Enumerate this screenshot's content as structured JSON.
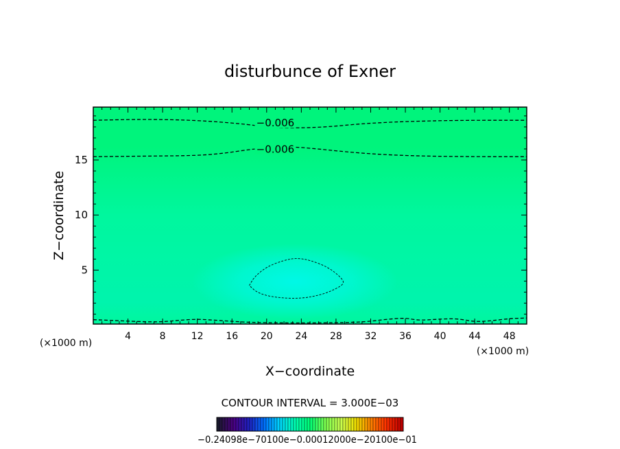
{
  "chart_data": {
    "type": "contour",
    "title": "disturbunce of Exner",
    "xlabel": "X−coordinate",
    "ylabel": "Z−coordinate",
    "x_unit_label_left": "(×1000 m)",
    "x_unit_label_right": "(×1000 m)",
    "xlim": [
      0,
      50
    ],
    "ylim": [
      0.1,
      19.8
    ],
    "x_ticks": [
      {
        "value": 4,
        "label": "4"
      },
      {
        "value": 8,
        "label": "8"
      },
      {
        "value": 12,
        "label": "12"
      },
      {
        "value": 16,
        "label": "16"
      },
      {
        "value": 20,
        "label": "20"
      },
      {
        "value": 24,
        "label": "24"
      },
      {
        "value": 28,
        "label": "28"
      },
      {
        "value": 32,
        "label": "32"
      },
      {
        "value": 36,
        "label": "36"
      },
      {
        "value": 40,
        "label": "40"
      },
      {
        "value": 44,
        "label": "44"
      },
      {
        "value": 48,
        "label": "48"
      }
    ],
    "y_ticks": [
      {
        "value": 5,
        "label": "5"
      },
      {
        "value": 10,
        "label": "10"
      },
      {
        "value": 15,
        "label": "15"
      }
    ],
    "contour_interval_text": "CONTOUR INTERVAL = 3.000E−03",
    "contour_interval": 0.003,
    "contour_labels": [
      {
        "text": "−0.006",
        "x": 21,
        "z": 18.3
      },
      {
        "text": "−0.006",
        "x": 21,
        "z": 15.9
      }
    ],
    "contours": [
      {
        "value": -0.006,
        "style": "dashed",
        "points": [
          [
            0,
            18.6
          ],
          [
            6,
            18.7
          ],
          [
            12,
            18.6
          ],
          [
            17,
            18.3
          ],
          [
            20,
            18.0
          ],
          [
            23.5,
            17.9
          ],
          [
            27,
            18.0
          ],
          [
            31,
            18.3
          ],
          [
            36,
            18.5
          ],
          [
            42,
            18.6
          ],
          [
            50,
            18.6
          ]
        ]
      },
      {
        "value": -0.006,
        "style": "dashed",
        "points": [
          [
            0,
            15.3
          ],
          [
            6,
            15.35
          ],
          [
            12,
            15.4
          ],
          [
            15,
            15.6
          ],
          [
            18,
            15.95
          ],
          [
            20,
            16.1
          ],
          [
            23,
            16.2
          ],
          [
            26,
            16.0
          ],
          [
            29,
            15.75
          ],
          [
            33,
            15.5
          ],
          [
            38,
            15.35
          ],
          [
            44,
            15.3
          ],
          [
            50,
            15.3
          ]
        ]
      },
      {
        "value": -0.003,
        "style": "dashed",
        "closed": true,
        "points": [
          [
            18,
            3.6
          ],
          [
            18.6,
            4.4
          ],
          [
            20,
            5.3
          ],
          [
            22,
            5.9
          ],
          [
            23.5,
            6.1
          ],
          [
            25,
            5.9
          ],
          [
            27,
            5.3
          ],
          [
            28.5,
            4.4
          ],
          [
            29,
            3.8
          ],
          [
            28,
            3.3
          ],
          [
            26.5,
            2.8
          ],
          [
            24,
            2.4
          ],
          [
            21,
            2.5
          ],
          [
            19,
            2.9
          ],
          [
            18,
            3.6
          ]
        ]
      },
      {
        "value": 0.0,
        "style": "dashed",
        "points": [
          [
            0,
            0.5
          ],
          [
            3,
            0.4
          ],
          [
            6,
            0.3
          ],
          [
            8,
            0.3
          ],
          [
            10,
            0.45
          ],
          [
            12,
            0.55
          ],
          [
            14,
            0.45
          ],
          [
            16,
            0.35
          ],
          [
            18,
            0.25
          ],
          [
            22,
            0.2
          ],
          [
            26,
            0.2
          ],
          [
            30,
            0.25
          ],
          [
            32,
            0.35
          ],
          [
            34,
            0.55
          ],
          [
            36,
            0.65
          ],
          [
            37,
            0.5
          ],
          [
            38,
            0.45
          ],
          [
            40,
            0.55
          ],
          [
            42,
            0.6
          ],
          [
            44,
            0.3
          ],
          [
            46,
            0.4
          ],
          [
            48,
            0.6
          ],
          [
            50,
            0.65
          ]
        ]
      }
    ],
    "colorbar": {
      "vmin": -0.024,
      "vmax": 0.024,
      "colors": [
        "#1a1a2e",
        "#4b0082",
        "#2020c0",
        "#0070ff",
        "#00d4ff",
        "#00ffb4",
        "#00ff78",
        "#7cff50",
        "#c8ff50",
        "#f0e000",
        "#ff8000",
        "#ff3000",
        "#c00000"
      ],
      "tick_labels_text": "−0.24098e−70100e−0.00012000e−20100e−01"
    },
    "field_colors": {
      "top": "#00f47c",
      "mid": "#00f79e",
      "low": "#00f4ad",
      "core": "#00f8e6"
    },
    "grid": false,
    "legend": "none"
  }
}
